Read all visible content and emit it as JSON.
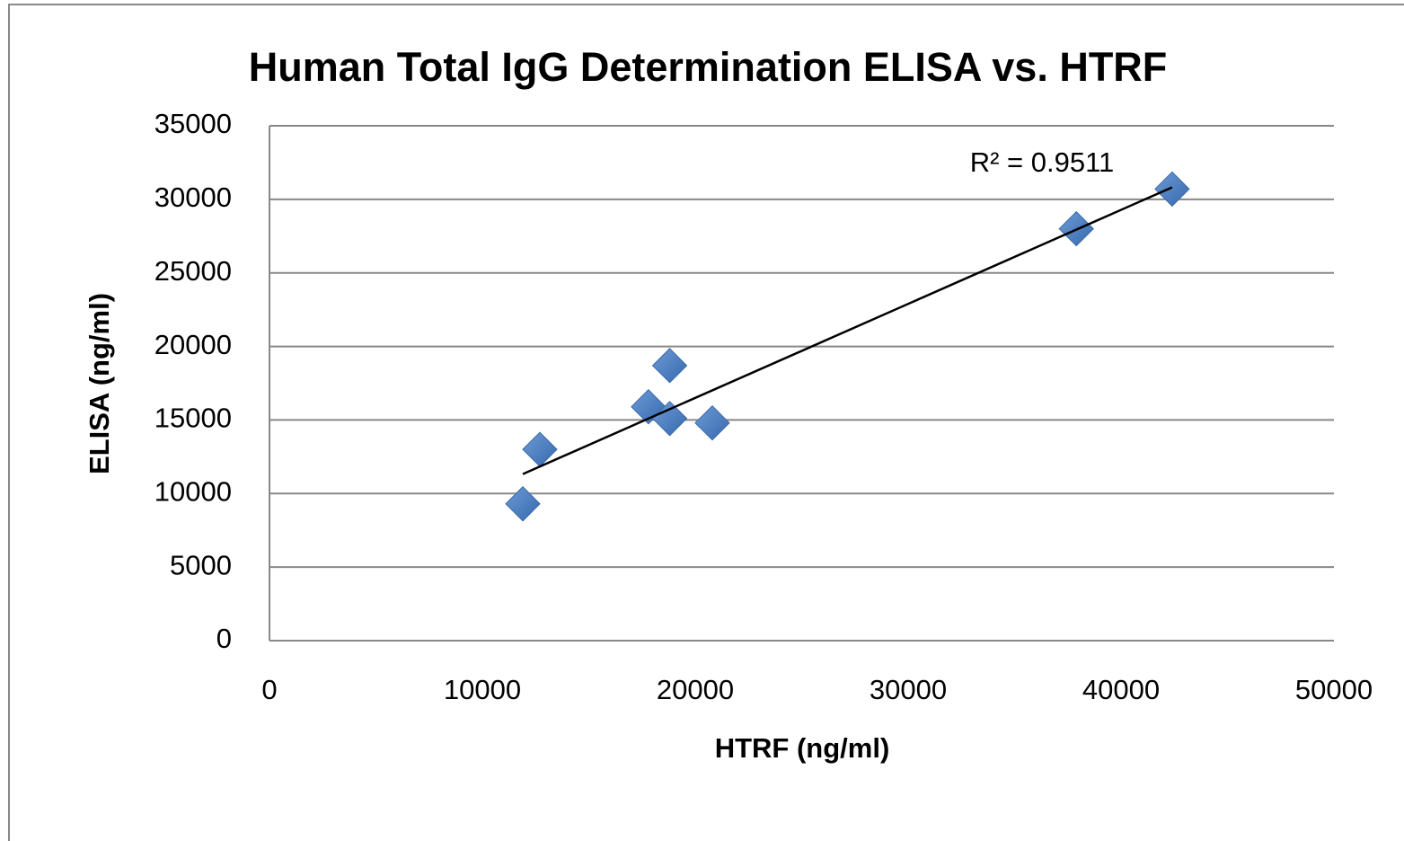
{
  "chart_data": {
    "type": "scatter",
    "title": "Human Total IgG Determination  ELISA vs. HTRF",
    "x_label": "HTRF (ng/ml)",
    "y_label": "ELISA (ng/ml)",
    "x": [
      11900,
      12700,
      17800,
      18800,
      18800,
      20800,
      37900,
      42400
    ],
    "values": [
      9300,
      13000,
      15900,
      18700,
      15100,
      14800,
      28000,
      30700
    ],
    "color": "#4a7ebb",
    "xlim": [
      0,
      50000
    ],
    "xticks": [
      0,
      10000,
      20000,
      30000,
      40000,
      50000
    ],
    "ylim": [
      0,
      35000
    ],
    "yticks": [
      0,
      5000,
      10000,
      15000,
      20000,
      25000,
      30000,
      35000
    ],
    "grid": true,
    "trendline": {
      "label": "R² = 0.9511"
    }
  }
}
